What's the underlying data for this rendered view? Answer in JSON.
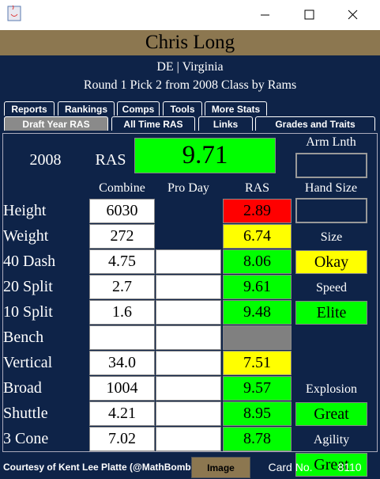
{
  "header": {
    "name": "Chris Long",
    "position_school": "DE | Virginia",
    "draft": "Round 1 Pick 2 from 2008 Class by Rams"
  },
  "tabs": {
    "row1": [
      "Reports",
      "Rankings",
      "Comps",
      "Tools",
      "More Stats"
    ],
    "row2": [
      "Draft Year RAS",
      "All Time RAS",
      "Links",
      "Grades and Traits"
    ],
    "selected_row2": 0
  },
  "summary": {
    "year": "2008",
    "ras_label": "RAS",
    "ras": "9.71",
    "ras_color": "#00ff00"
  },
  "columns": [
    "Combine",
    "Pro Day",
    "RAS"
  ],
  "measurements": [
    {
      "label": "Height",
      "combine": "6030",
      "pro_day": null,
      "ras": "2.89",
      "ras_color": "#ff0000"
    },
    {
      "label": "Weight",
      "combine": "272",
      "pro_day": null,
      "ras": "6.74",
      "ras_color": "#ffff00"
    },
    {
      "label": "40 Dash",
      "combine": "4.75",
      "pro_day": null,
      "ras": "8.06",
      "ras_color": "#00ff00"
    },
    {
      "label": "20 Split",
      "combine": "2.7",
      "pro_day": null,
      "ras": "9.61",
      "ras_color": "#00ff00"
    },
    {
      "label": "10 Split",
      "combine": "1.6",
      "pro_day": null,
      "ras": "9.48",
      "ras_color": "#00ff00"
    },
    {
      "label": "Bench",
      "combine": null,
      "pro_day": null,
      "ras": null,
      "ras_color": "#808080"
    },
    {
      "label": "Vertical",
      "combine": "34.0",
      "pro_day": null,
      "ras": "7.51",
      "ras_color": "#ffff00"
    },
    {
      "label": "Broad",
      "combine": "1004",
      "pro_day": null,
      "ras": "9.57",
      "ras_color": "#00ff00"
    },
    {
      "label": "Shuttle",
      "combine": "4.21",
      "pro_day": null,
      "ras": "8.95",
      "ras_color": "#00ff00"
    },
    {
      "label": "3 Cone",
      "combine": "7.02",
      "pro_day": null,
      "ras": "8.78",
      "ras_color": "#00ff00"
    }
  ],
  "side": {
    "arm_length_label": "Arm Lnth",
    "hand_size_label": "Hand Size",
    "grades": [
      {
        "label": "Size",
        "grade": "Okay",
        "color": "#ffff00"
      },
      {
        "label": "Speed",
        "grade": "Elite",
        "color": "#00ff00"
      },
      {
        "label": "Explosion",
        "grade": "Great",
        "color": "#00ff00"
      },
      {
        "label": "Agility",
        "grade": "Great",
        "color": "#00ff00"
      }
    ]
  },
  "footer": {
    "credit": "Courtesy of Kent Lee Platte (@MathBomb)",
    "button": "Image",
    "card_label": "Card No.",
    "card_number": "8110"
  }
}
